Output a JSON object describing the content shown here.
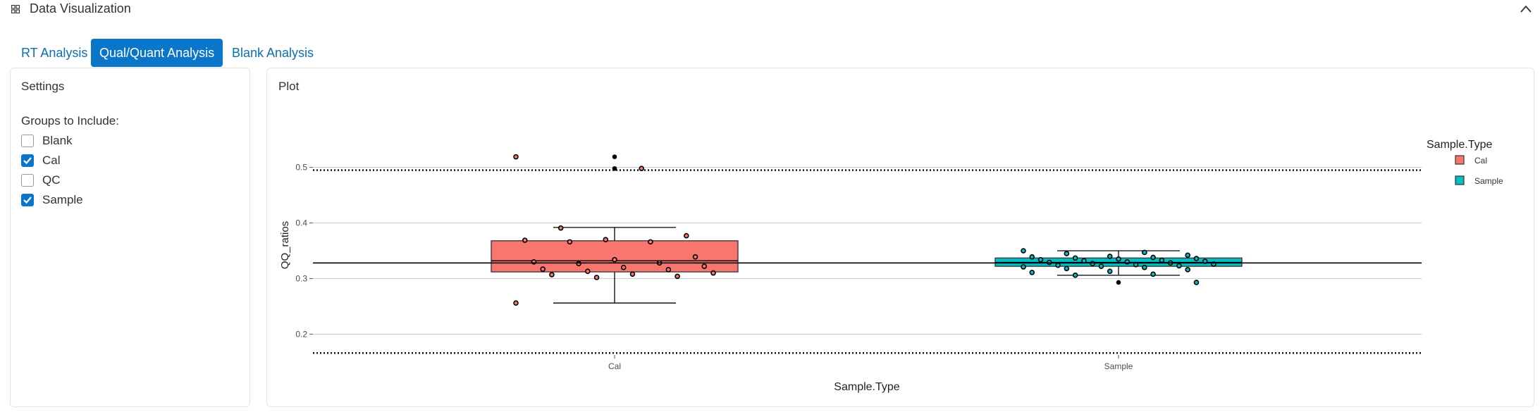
{
  "header": {
    "title": "Data Visualization",
    "icon": "grid-icon",
    "collapse_icon": "chevron-up-icon"
  },
  "tabs": [
    {
      "label": "RT Analysis",
      "active": false
    },
    {
      "label": "Qual/Quant Analysis",
      "active": true
    },
    {
      "label": "Blank Analysis",
      "active": false
    }
  ],
  "settings": {
    "title": "Settings",
    "groups_label": "Groups to Include:",
    "groups": [
      {
        "label": "Blank",
        "checked": false
      },
      {
        "label": "Cal",
        "checked": true
      },
      {
        "label": "QC",
        "checked": false
      },
      {
        "label": "Sample",
        "checked": true
      }
    ]
  },
  "plot": {
    "title": "Plot"
  },
  "colors": {
    "accent": "#0b75c9",
    "cal": "#F8766D",
    "sample": "#00BFC4"
  },
  "chart_data": {
    "type": "box",
    "xlabel": "Sample.Type",
    "ylabel": "QQ_ratios",
    "categories": [
      "Cal",
      "Sample"
    ],
    "ylim": [
      0.165,
      0.535
    ],
    "yticks": [
      0.2,
      0.3,
      0.4,
      0.5
    ],
    "ytick_labels": [
      "0.2",
      "0.3",
      "0.4",
      "0.5"
    ],
    "reference_lines": {
      "solid": 0.328,
      "dotted": [
        0.495,
        0.166
      ]
    },
    "legend": {
      "title": "Sample.Type",
      "entries": [
        "Cal",
        "Sample"
      ],
      "position": "right"
    },
    "grid": true,
    "boxes": [
      {
        "category": "Cal",
        "whisker_low": 0.256,
        "q1": 0.312,
        "median": 0.332,
        "q3": 0.368,
        "whisker_high": 0.392,
        "outliers": [
          0.519,
          0.519,
          0.498,
          0.498
        ]
      },
      {
        "category": "Sample",
        "whisker_low": 0.306,
        "q1": 0.322,
        "median": 0.329,
        "q3": 0.337,
        "whisker_high": 0.35,
        "outliers": [
          0.293,
          0.293
        ]
      }
    ],
    "points": [
      {
        "category": "Cal",
        "values": [
          0.519,
          0.498,
          0.391,
          0.377,
          0.37,
          0.369,
          0.366,
          0.366,
          0.339,
          0.334,
          0.33,
          0.328,
          0.327,
          0.322,
          0.32,
          0.317,
          0.316,
          0.313,
          0.31,
          0.308,
          0.307,
          0.304,
          0.302,
          0.256
        ]
      },
      {
        "category": "Sample",
        "values": [
          0.35,
          0.347,
          0.345,
          0.342,
          0.34,
          0.339,
          0.338,
          0.337,
          0.336,
          0.335,
          0.334,
          0.333,
          0.332,
          0.331,
          0.33,
          0.329,
          0.328,
          0.327,
          0.326,
          0.325,
          0.324,
          0.323,
          0.322,
          0.321,
          0.32,
          0.318,
          0.316,
          0.313,
          0.311,
          0.308,
          0.306,
          0.293
        ]
      }
    ]
  }
}
